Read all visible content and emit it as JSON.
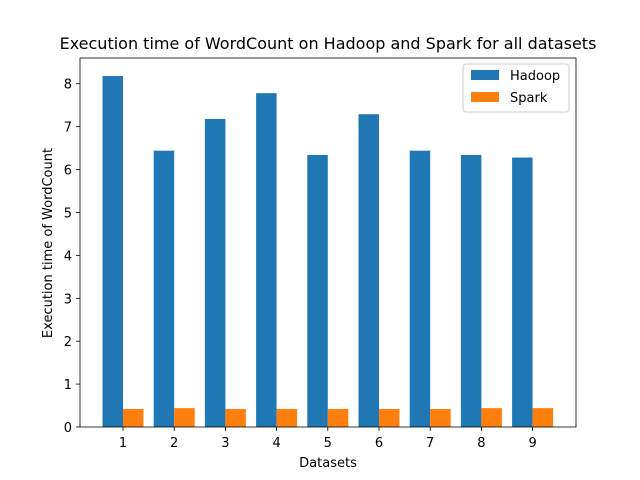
{
  "chart_data": {
    "type": "bar",
    "title": "Execution time of WordCount on Hadoop and Spark for all datasets",
    "xlabel": "Datasets",
    "ylabel": "Execution time of WordCount",
    "categories": [
      "1",
      "2",
      "3",
      "4",
      "5",
      "6",
      "7",
      "8",
      "9"
    ],
    "series": [
      {
        "name": "Hadoop",
        "color": "#1f77b4",
        "values": [
          8.18,
          6.44,
          7.18,
          7.78,
          6.34,
          7.29,
          6.44,
          6.34,
          6.28
        ]
      },
      {
        "name": "Spark",
        "color": "#ff7f0e",
        "values": [
          0.42,
          0.44,
          0.42,
          0.42,
          0.42,
          0.42,
          0.42,
          0.44,
          0.44
        ]
      }
    ],
    "ylim": [
      0,
      8.6
    ],
    "yticks": [
      0,
      1,
      2,
      3,
      4,
      5,
      6,
      7,
      8
    ],
    "grid": false,
    "legend_position": "top-right"
  }
}
